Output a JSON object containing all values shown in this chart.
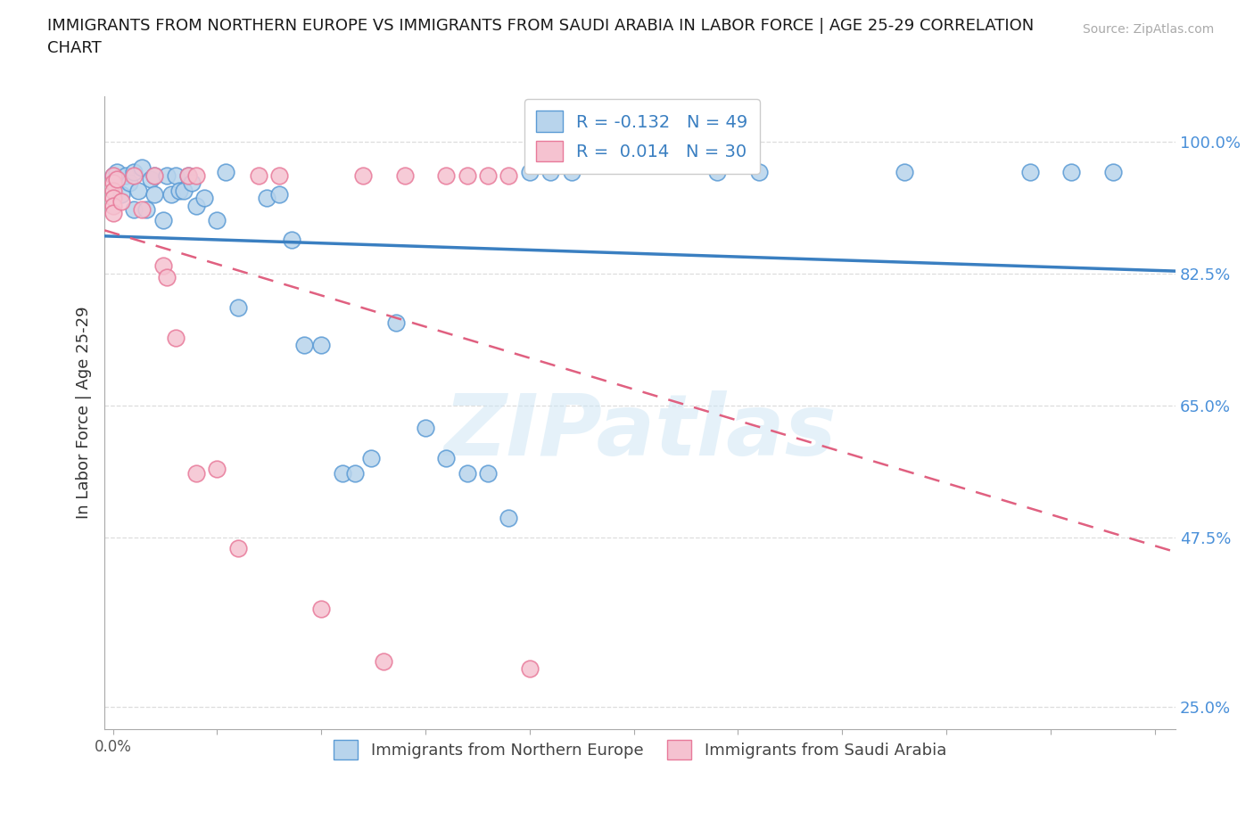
{
  "title_line1": "IMMIGRANTS FROM NORTHERN EUROPE VS IMMIGRANTS FROM SAUDI ARABIA IN LABOR FORCE | AGE 25-29 CORRELATION",
  "title_line2": "CHART",
  "source": "Source: ZipAtlas.com",
  "ylabel": "In Labor Force | Age 25-29",
  "R_blue": -0.132,
  "N_blue": 49,
  "R_pink": 0.014,
  "N_pink": 30,
  "blue_fill": "#b8d4ec",
  "blue_edge": "#5b9bd5",
  "pink_fill": "#f5c2d0",
  "pink_edge": "#e87a9a",
  "blue_line": "#3a7fc1",
  "pink_line": "#e06080",
  "grid_color": "#dddddd",
  "ytick_color": "#4a90d9",
  "blue_scatter": [
    [
      0.0,
      0.955
    ],
    [
      0.001,
      0.96
    ],
    [
      0.002,
      0.93
    ],
    [
      0.003,
      0.955
    ],
    [
      0.004,
      0.945
    ],
    [
      0.005,
      0.91
    ],
    [
      0.005,
      0.96
    ],
    [
      0.006,
      0.935
    ],
    [
      0.007,
      0.965
    ],
    [
      0.008,
      0.91
    ],
    [
      0.009,
      0.95
    ],
    [
      0.01,
      0.955
    ],
    [
      0.01,
      0.93
    ],
    [
      0.012,
      0.895
    ],
    [
      0.013,
      0.955
    ],
    [
      0.014,
      0.93
    ],
    [
      0.015,
      0.955
    ],
    [
      0.016,
      0.935
    ],
    [
      0.017,
      0.935
    ],
    [
      0.018,
      0.955
    ],
    [
      0.019,
      0.945
    ],
    [
      0.02,
      0.915
    ],
    [
      0.022,
      0.925
    ],
    [
      0.025,
      0.895
    ],
    [
      0.027,
      0.96
    ],
    [
      0.03,
      0.78
    ],
    [
      0.037,
      0.925
    ],
    [
      0.04,
      0.93
    ],
    [
      0.043,
      0.87
    ],
    [
      0.046,
      0.73
    ],
    [
      0.05,
      0.73
    ],
    [
      0.055,
      0.56
    ],
    [
      0.058,
      0.56
    ],
    [
      0.062,
      0.58
    ],
    [
      0.068,
      0.76
    ],
    [
      0.075,
      0.62
    ],
    [
      0.08,
      0.58
    ],
    [
      0.085,
      0.56
    ],
    [
      0.09,
      0.56
    ],
    [
      0.095,
      0.5
    ],
    [
      0.1,
      0.96
    ],
    [
      0.105,
      0.96
    ],
    [
      0.11,
      0.96
    ],
    [
      0.145,
      0.96
    ],
    [
      0.155,
      0.96
    ],
    [
      0.19,
      0.96
    ],
    [
      0.22,
      0.96
    ],
    [
      0.23,
      0.96
    ],
    [
      0.24,
      0.96
    ]
  ],
  "pink_scatter": [
    [
      0.0,
      0.955
    ],
    [
      0.0,
      0.945
    ],
    [
      0.0,
      0.935
    ],
    [
      0.0,
      0.925
    ],
    [
      0.0,
      0.915
    ],
    [
      0.0,
      0.905
    ],
    [
      0.001,
      0.95
    ],
    [
      0.002,
      0.92
    ],
    [
      0.005,
      0.955
    ],
    [
      0.007,
      0.91
    ],
    [
      0.01,
      0.955
    ],
    [
      0.012,
      0.835
    ],
    [
      0.013,
      0.82
    ],
    [
      0.015,
      0.74
    ],
    [
      0.018,
      0.955
    ],
    [
      0.02,
      0.955
    ],
    [
      0.02,
      0.56
    ],
    [
      0.025,
      0.565
    ],
    [
      0.03,
      0.46
    ],
    [
      0.035,
      0.955
    ],
    [
      0.04,
      0.955
    ],
    [
      0.05,
      0.38
    ],
    [
      0.06,
      0.955
    ],
    [
      0.065,
      0.31
    ],
    [
      0.07,
      0.955
    ],
    [
      0.08,
      0.955
    ],
    [
      0.085,
      0.955
    ],
    [
      0.09,
      0.955
    ],
    [
      0.095,
      0.955
    ],
    [
      0.1,
      0.3
    ]
  ],
  "watermark": "ZIPatlas",
  "legend_blue_label": "Immigrants from Northern Europe",
  "legend_pink_label": "Immigrants from Saudi Arabia",
  "yticks": [
    0.25,
    0.475,
    0.65,
    0.825,
    1.0
  ],
  "ytick_labels": [
    "25.0%",
    "47.5%",
    "65.0%",
    "82.5%",
    "100.0%"
  ],
  "xlim": [
    -0.002,
    0.255
  ],
  "ylim": [
    0.22,
    1.06
  ],
  "xtick_positions": [
    0.0,
    0.025,
    0.05,
    0.075,
    0.1,
    0.125,
    0.15,
    0.175,
    0.2,
    0.225,
    0.25
  ],
  "xtick_labels": [
    "0.0%",
    "",
    "",
    "",
    "",
    "",
    "",
    "",
    "",
    "",
    ""
  ]
}
